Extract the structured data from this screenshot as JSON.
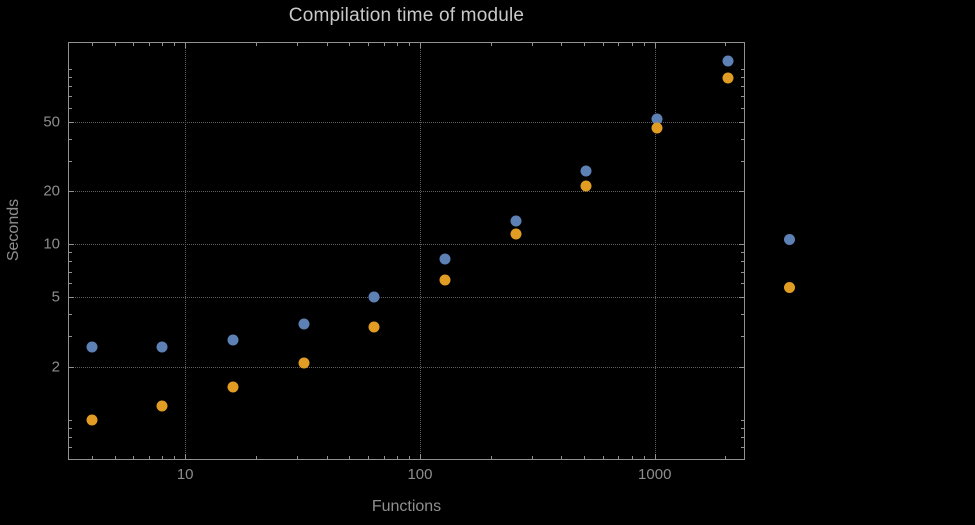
{
  "title": "Compilation time of module",
  "colors": {
    "background": "#000000",
    "frame": "#919191",
    "grid": "#5f5f5f",
    "title_text": "#c9c9c9",
    "label_text": "#8f8f8f",
    "tick_text": "#8d8d8d",
    "series_blue": "#5e81b5",
    "series_orange": "#e19c24"
  },
  "chart_data": {
    "type": "scatter",
    "title": "Compilation time of module",
    "xlabel": "Functions",
    "ylabel": "Seconds",
    "xscale": "log",
    "yscale": "log",
    "xlim": [
      3.2,
      2400
    ],
    "ylim": [
      0.6,
      140
    ],
    "grid": true,
    "legend_position": "right-outside",
    "x": [
      4,
      8,
      16,
      32,
      64,
      128,
      256,
      512,
      1024,
      2048
    ],
    "series": [
      {
        "name": "series-1-blue",
        "color": "#5e81b5",
        "values": [
          2.6,
          2.6,
          2.85,
          3.5,
          5.0,
          8.3,
          13.5,
          26,
          52,
          110
        ]
      },
      {
        "name": "series-2-orange",
        "color": "#e19c24",
        "values": [
          1.0,
          1.2,
          1.55,
          2.1,
          3.4,
          6.3,
          11.5,
          21.5,
          46,
          88
        ]
      }
    ],
    "x_ticks": [
      {
        "value": 10,
        "label": "10"
      },
      {
        "value": 100,
        "label": "100"
      },
      {
        "value": 1000,
        "label": "1000"
      }
    ],
    "y_ticks": [
      {
        "value": 2,
        "label": "2"
      },
      {
        "value": 5,
        "label": "5"
      },
      {
        "value": 10,
        "label": "10"
      },
      {
        "value": 20,
        "label": "20"
      },
      {
        "value": 50,
        "label": "50"
      }
    ]
  },
  "legend": {
    "markers": [
      {
        "name": "blue",
        "color": "#5e81b5"
      },
      {
        "name": "orange",
        "color": "#e19c24"
      }
    ]
  }
}
